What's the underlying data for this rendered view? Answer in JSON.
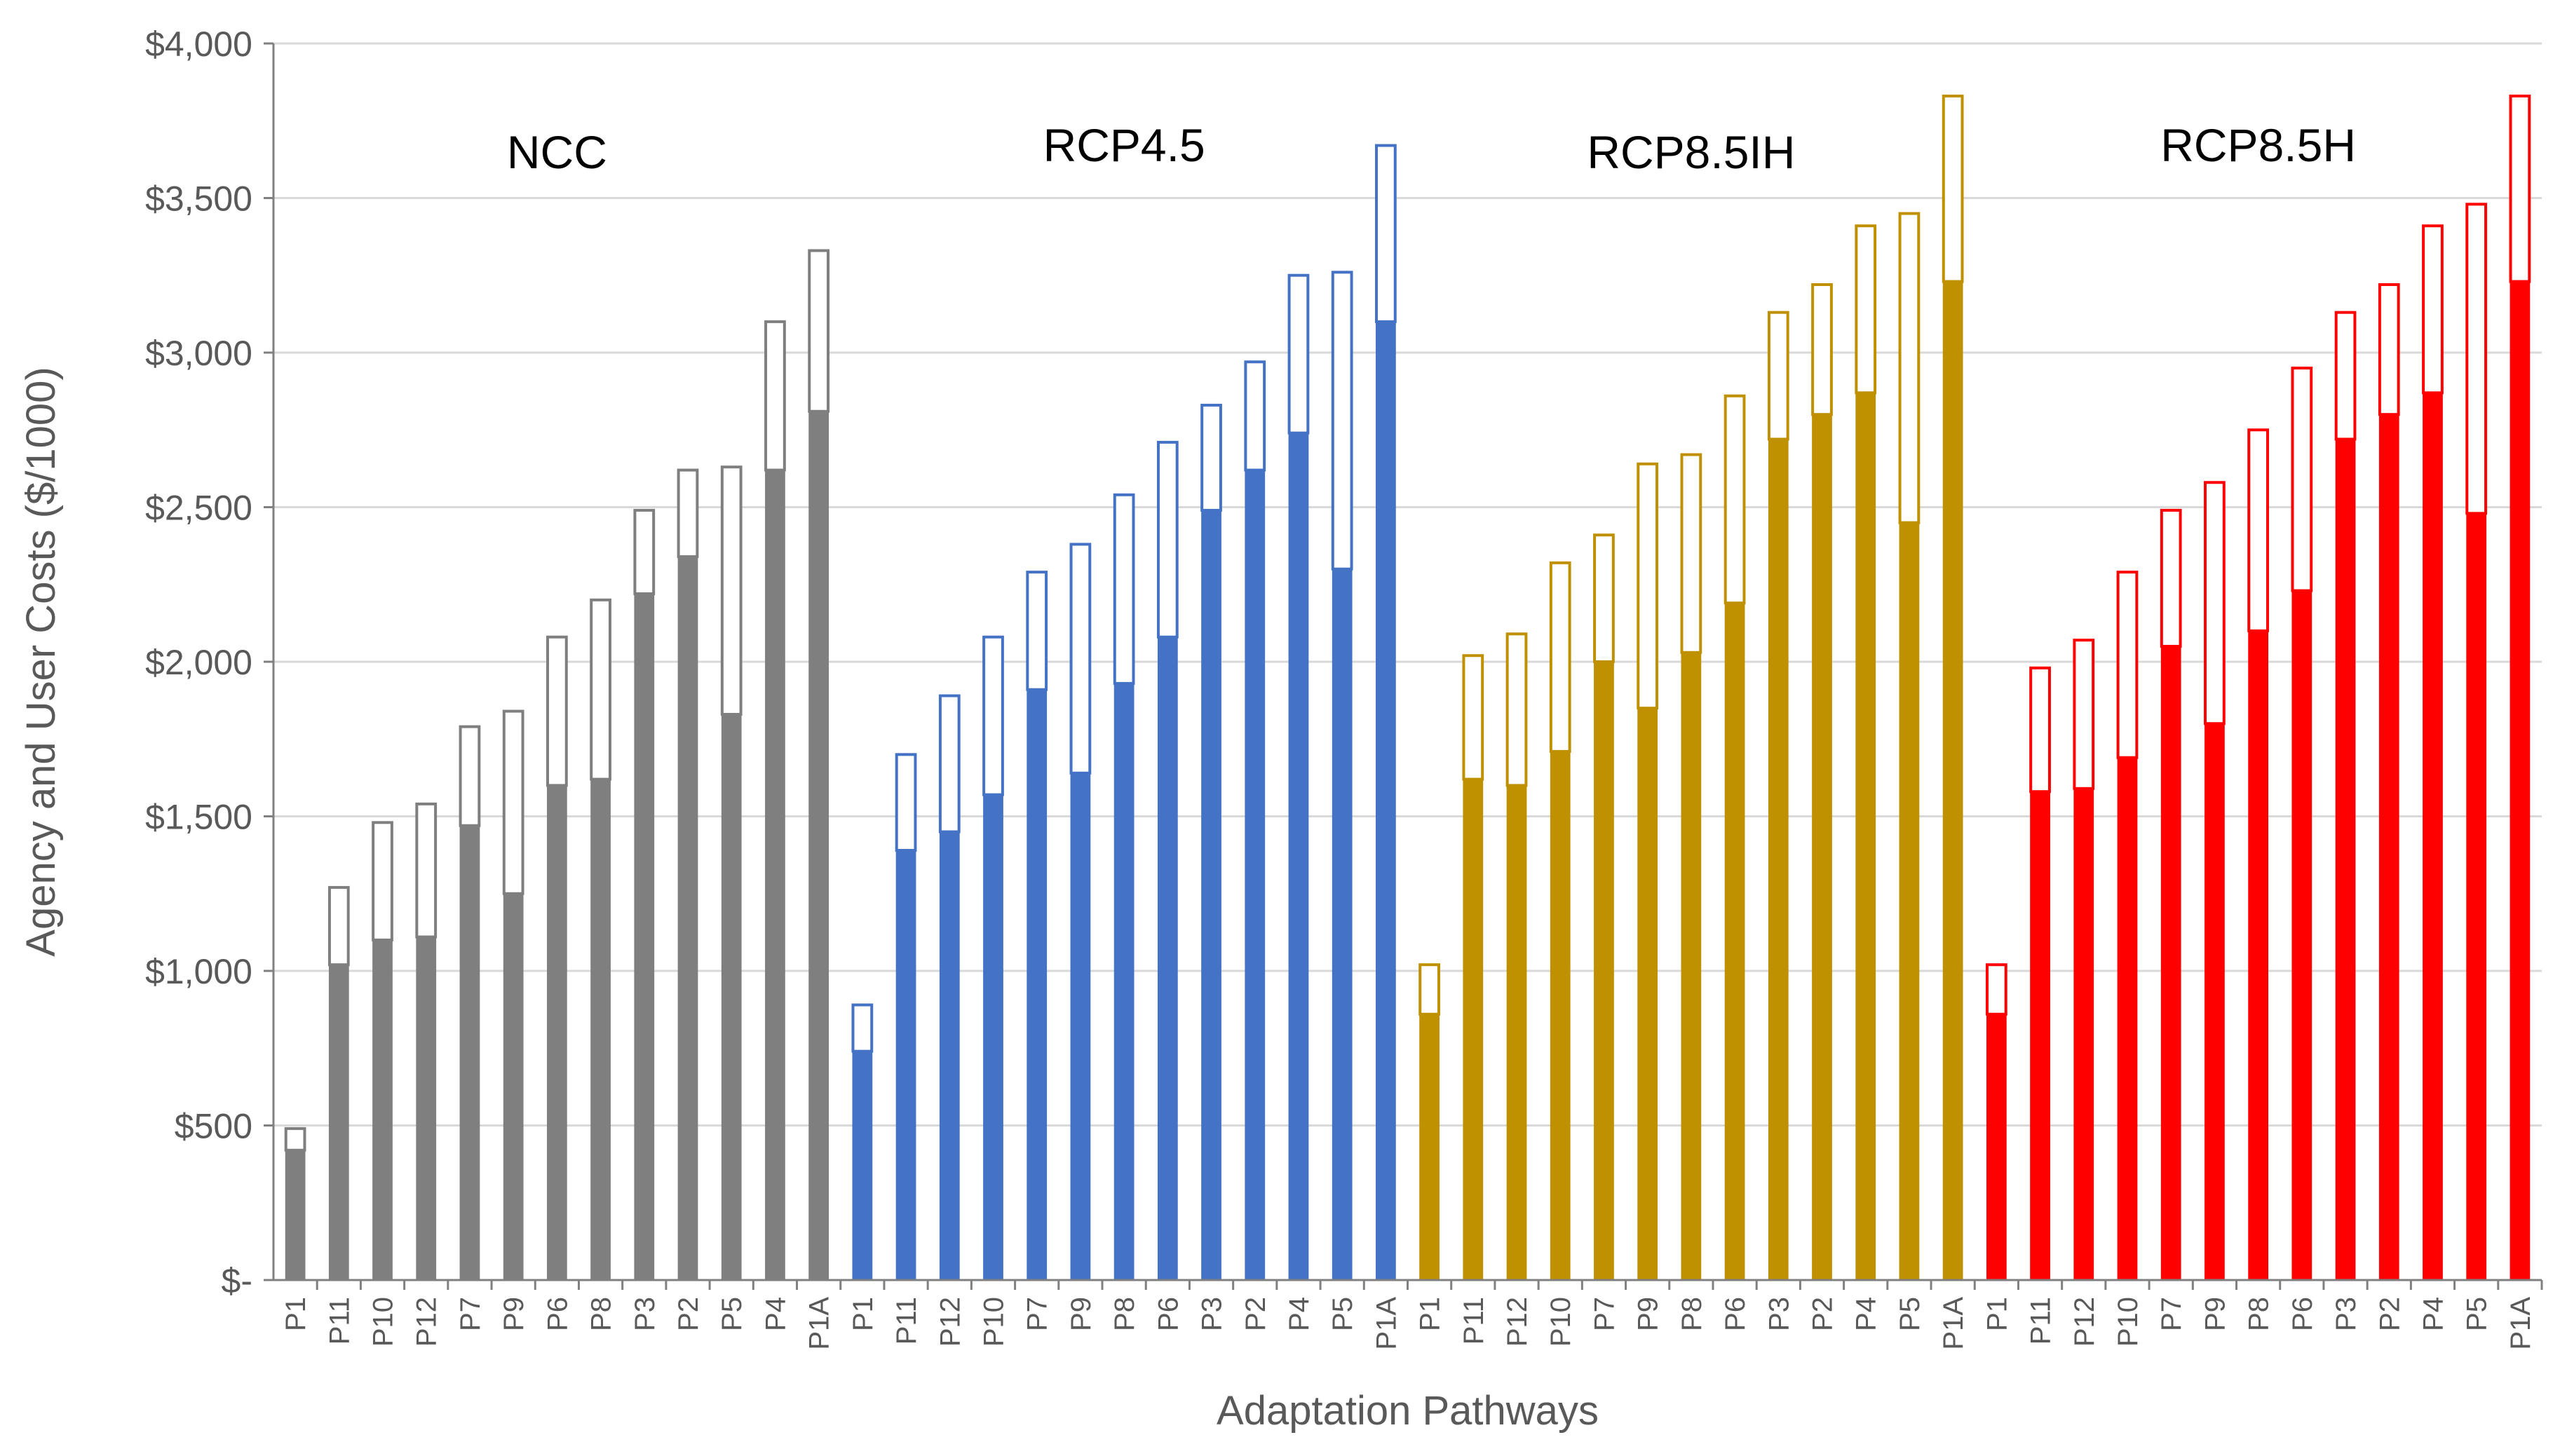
{
  "chart_data": {
    "type": "bar",
    "subtype": "stacked-floating (solid agency cost, outlined user cost on top)",
    "title": "",
    "xlabel": "Adaptation Pathways",
    "ylabel": "Agency and User Costs ($/1000)",
    "ylim": [
      0,
      4000
    ],
    "y_ticks": [
      {
        "value": 0,
        "label": "$-"
      },
      {
        "value": 500,
        "label": "$500"
      },
      {
        "value": 1000,
        "label": "$1,000"
      },
      {
        "value": 1500,
        "label": "$1,500"
      },
      {
        "value": 2000,
        "label": "$2,000"
      },
      {
        "value": 2500,
        "label": "$2,500"
      },
      {
        "value": 3000,
        "label": "$3,000"
      },
      {
        "value": 3500,
        "label": "$3,500"
      },
      {
        "value": 4000,
        "label": "$4,000"
      }
    ],
    "grid": "horizontal",
    "groups": [
      {
        "name": "NCC",
        "color": "#7f7f7f",
        "categories": [
          "P1",
          "P11",
          "P10",
          "P12",
          "P7",
          "P9",
          "P6",
          "P8",
          "P3",
          "P2",
          "P5",
          "P4",
          "P1A"
        ],
        "solid": [
          420,
          1020,
          1100,
          1110,
          1470,
          1250,
          1600,
          1620,
          2220,
          2340,
          1830,
          2620,
          2810
        ],
        "total": [
          490,
          1270,
          1480,
          1540,
          1790,
          1840,
          2080,
          2200,
          2490,
          2620,
          2630,
          3100,
          3330
        ]
      },
      {
        "name": "RCP4.5",
        "color": "#4472c4",
        "categories": [
          "P1",
          "P11",
          "P12",
          "P10",
          "P7",
          "P9",
          "P8",
          "P6",
          "P3",
          "P2",
          "P4",
          "P5",
          "P1A"
        ],
        "solid": [
          740,
          1390,
          1450,
          1570,
          1910,
          1640,
          1930,
          2080,
          2490,
          2620,
          2740,
          2300,
          3100
        ],
        "total": [
          890,
          1700,
          1890,
          2080,
          2290,
          2380,
          2540,
          2710,
          2830,
          2970,
          3250,
          3260,
          3670
        ]
      },
      {
        "name": "RCP8.5IH",
        "color": "#bf9000",
        "categories": [
          "P1",
          "P11",
          "P12",
          "P10",
          "P7",
          "P9",
          "P8",
          "P6",
          "P3",
          "P2",
          "P4",
          "P5",
          "P1A"
        ],
        "solid": [
          860,
          1620,
          1600,
          1710,
          2000,
          1850,
          2030,
          2190,
          2720,
          2800,
          2870,
          2450,
          3230
        ],
        "total": [
          1020,
          2020,
          2090,
          2320,
          2410,
          2640,
          2670,
          2860,
          3130,
          3220,
          3410,
          3450,
          3830
        ]
      },
      {
        "name": "RCP8.5H",
        "color": "#ff0000",
        "categories": [
          "P1",
          "P11",
          "P12",
          "P10",
          "P7",
          "P9",
          "P8",
          "P6",
          "P3",
          "P2",
          "P4",
          "P5",
          "P1A"
        ],
        "solid": [
          860,
          1580,
          1590,
          1690,
          2050,
          1800,
          2100,
          2230,
          2720,
          2800,
          2870,
          2480,
          3230
        ],
        "total": [
          1020,
          1980,
          2070,
          2290,
          2490,
          2580,
          2750,
          2950,
          3130,
          3220,
          3410,
          3480,
          3830
        ]
      }
    ]
  }
}
